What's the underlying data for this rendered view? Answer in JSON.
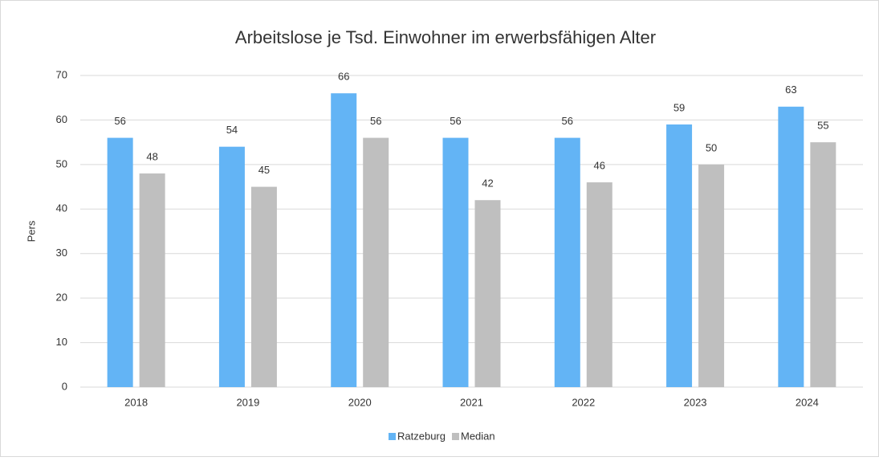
{
  "chart_data": {
    "type": "bar",
    "title": "Arbeitslose je Tsd. Einwohner im erwerbsfähigen Alter",
    "ylabel": "Pers",
    "categories": [
      "2018",
      "2019",
      "2020",
      "2021",
      "2022",
      "2023",
      "2024"
    ],
    "series": [
      {
        "name": "Ratzeburg",
        "color": "#63b4f5",
        "values": [
          56,
          54,
          66,
          56,
          56,
          59,
          63
        ]
      },
      {
        "name": "Median",
        "color": "#bfbfbf",
        "values": [
          48,
          45,
          56,
          42,
          46,
          50,
          55
        ]
      }
    ],
    "ylim": [
      0,
      70
    ],
    "yticks": [
      0,
      10,
      20,
      30,
      40,
      50,
      60,
      70
    ],
    "grid": true,
    "legend": "bottom"
  }
}
